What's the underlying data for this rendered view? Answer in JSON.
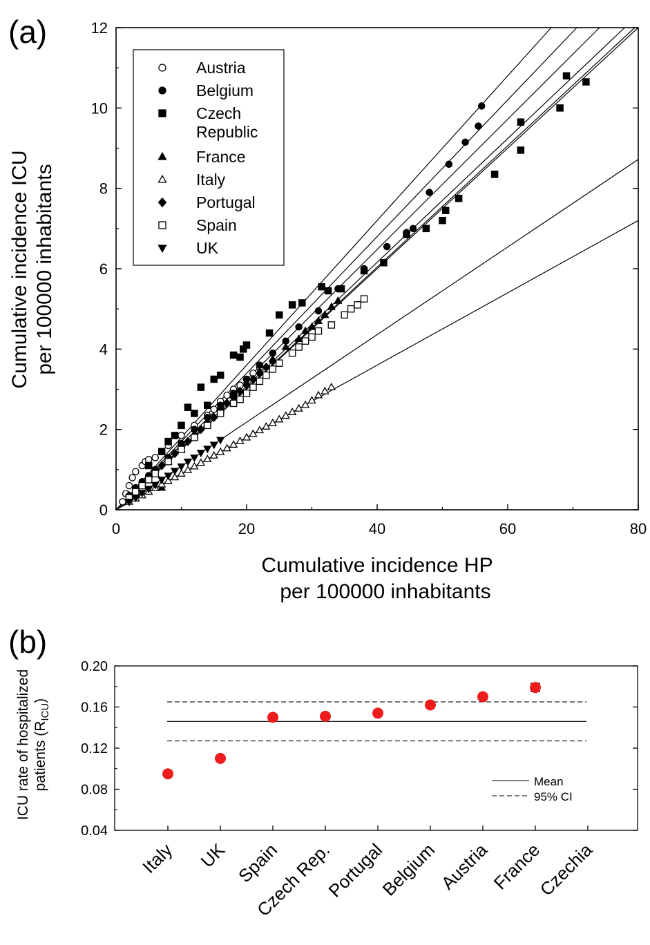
{
  "chart_data": [
    {
      "type": "scatter",
      "panel_label": "(a)",
      "xlabel_lines": [
        "Cumulative incidence HP",
        "per 100000 inhabitants"
      ],
      "ylabel_lines": [
        "Cumulative incidence ICU",
        "per 100000 inhabitants"
      ],
      "xlim": [
        0,
        80
      ],
      "ylim": [
        0,
        12
      ],
      "xticks": [
        0,
        20,
        40,
        60,
        80
      ],
      "yticks": [
        0,
        2,
        4,
        6,
        8,
        10,
        12
      ],
      "legend_position": "top-left",
      "legend": [
        {
          "label": "Austria",
          "marker": "circle-open"
        },
        {
          "label": "Belgium",
          "marker": "circle-filled"
        },
        {
          "label": "Czech",
          "label2": "Republic",
          "marker": "square-filled"
        },
        {
          "label": "France",
          "marker": "triangle-up-filled"
        },
        {
          "label": "Italy",
          "marker": "triangle-up-open"
        },
        {
          "label": "Portugal",
          "marker": "diamond-filled"
        },
        {
          "label": "Spain",
          "marker": "square-open"
        },
        {
          "label": "UK",
          "marker": "triangle-down-filled"
        }
      ],
      "fit_line_slopes": [
        0.09,
        0.109,
        0.15,
        0.151,
        0.154,
        0.162,
        0.17,
        0.18
      ],
      "series": [
        {
          "name": "Austria",
          "marker": "circle-open",
          "points": [
            [
              1,
              0.2
            ],
            [
              1.5,
              0.4
            ],
            [
              2,
              0.6
            ],
            [
              2.5,
              0.8
            ],
            [
              3,
              0.95
            ],
            [
              4,
              1.1
            ],
            [
              4.5,
              1.2
            ],
            [
              5,
              1.25
            ],
            [
              6,
              1.3
            ],
            [
              7,
              1.45
            ],
            [
              8,
              1.6
            ],
            [
              10,
              1.85
            ],
            [
              12,
              2.1
            ],
            [
              14,
              2.35
            ],
            [
              15,
              2.5
            ],
            [
              16,
              2.7
            ],
            [
              17,
              2.85
            ],
            [
              18,
              3.0
            ],
            [
              19,
              3.1
            ],
            [
              20,
              3.25
            ],
            [
              21,
              3.4
            ],
            [
              22,
              3.55
            ]
          ]
        },
        {
          "name": "Belgium",
          "marker": "circle-filled",
          "points": [
            [
              2,
              0.35
            ],
            [
              3,
              0.55
            ],
            [
              4,
              0.7
            ],
            [
              5,
              0.85
            ],
            [
              6,
              1.0
            ],
            [
              8,
              1.3
            ],
            [
              10,
              1.65
            ],
            [
              12,
              2.0
            ],
            [
              14,
              2.3
            ],
            [
              16,
              2.6
            ],
            [
              18,
              2.9
            ],
            [
              20,
              3.25
            ],
            [
              22,
              3.6
            ],
            [
              24,
              3.9
            ],
            [
              26,
              4.2
            ],
            [
              28,
              4.55
            ],
            [
              31,
              4.95
            ],
            [
              34,
              5.5
            ],
            [
              38,
              6.0
            ],
            [
              41.5,
              6.55
            ],
            [
              44.5,
              6.9
            ],
            [
              45.5,
              7.0
            ],
            [
              48,
              7.9
            ],
            [
              51,
              8.6
            ],
            [
              53.5,
              9.15
            ],
            [
              55.5,
              9.55
            ],
            [
              56,
              10.05
            ]
          ]
        },
        {
          "name": "Czech Republic",
          "marker": "square-filled",
          "points": [
            [
              5,
              1.1
            ],
            [
              7,
              1.45
            ],
            [
              8,
              1.7
            ],
            [
              9,
              1.85
            ],
            [
              10,
              2.1
            ],
            [
              11,
              2.55
            ],
            [
              12,
              2.4
            ],
            [
              13,
              3.05
            ],
            [
              14,
              2.6
            ],
            [
              15,
              3.25
            ],
            [
              16,
              3.35
            ],
            [
              18,
              3.85
            ],
            [
              19,
              3.8
            ],
            [
              19.5,
              4.0
            ],
            [
              20,
              4.1
            ],
            [
              23.5,
              4.4
            ],
            [
              25,
              4.85
            ],
            [
              27,
              5.1
            ],
            [
              28.5,
              5.15
            ],
            [
              31.5,
              5.55
            ],
            [
              32.5,
              5.45
            ],
            [
              34.5,
              5.5
            ],
            [
              38,
              5.95
            ],
            [
              41,
              6.15
            ],
            [
              44.5,
              6.85
            ],
            [
              47.5,
              7.0
            ],
            [
              50,
              7.2
            ],
            [
              50.5,
              7.45
            ],
            [
              52.5,
              7.75
            ],
            [
              58,
              8.35
            ],
            [
              62,
              8.95
            ],
            [
              62,
              9.65
            ],
            [
              68,
              10.0
            ],
            [
              69,
              10.8
            ],
            [
              72,
              10.65
            ]
          ]
        },
        {
          "name": "France",
          "marker": "triangle-up-filled",
          "points": [
            [
              3,
              0.45
            ],
            [
              4,
              0.6
            ],
            [
              5,
              0.75
            ],
            [
              6,
              0.9
            ],
            [
              7,
              0.55
            ],
            [
              8,
              1.2
            ],
            [
              10,
              1.5
            ],
            [
              12,
              1.85
            ],
            [
              14,
              2.15
            ],
            [
              16,
              2.5
            ],
            [
              18,
              2.85
            ],
            [
              20,
              3.15
            ],
            [
              22,
              3.45
            ],
            [
              24,
              3.75
            ],
            [
              26,
              4.05
            ],
            [
              28,
              4.25
            ],
            [
              29,
              4.45
            ],
            [
              30,
              4.55
            ],
            [
              31,
              4.7
            ],
            [
              32,
              4.85
            ],
            [
              33,
              5.05
            ],
            [
              34,
              5.2
            ]
          ]
        },
        {
          "name": "Italy",
          "marker": "triangle-up-open",
          "points": [
            [
              2,
              0.2
            ],
            [
              3,
              0.28
            ],
            [
              4,
              0.36
            ],
            [
              5,
              0.45
            ],
            [
              6,
              0.54
            ],
            [
              7,
              0.63
            ],
            [
              8,
              0.72
            ],
            [
              9,
              0.81
            ],
            [
              10,
              0.9
            ],
            [
              11,
              0.99
            ],
            [
              12,
              1.08
            ],
            [
              13,
              1.17
            ],
            [
              14,
              1.26
            ],
            [
              15,
              1.35
            ],
            [
              16,
              1.44
            ],
            [
              17,
              1.53
            ],
            [
              18,
              1.62
            ],
            [
              19,
              1.71
            ],
            [
              20,
              1.8
            ],
            [
              21,
              1.89
            ],
            [
              22,
              1.98
            ],
            [
              23,
              2.07
            ],
            [
              24,
              2.16
            ],
            [
              25,
              2.25
            ],
            [
              26,
              2.34
            ],
            [
              27,
              2.43
            ],
            [
              28,
              2.52
            ],
            [
              29,
              2.61
            ],
            [
              30,
              2.72
            ],
            [
              31,
              2.85
            ],
            [
              32,
              2.95
            ],
            [
              33,
              3.05
            ]
          ]
        },
        {
          "name": "Portugal",
          "marker": "diamond-filled",
          "points": [
            [
              2,
              0.35
            ],
            [
              3,
              0.5
            ],
            [
              4,
              0.65
            ],
            [
              5,
              0.8
            ],
            [
              6,
              0.95
            ],
            [
              7,
              1.1
            ],
            [
              8,
              1.25
            ],
            [
              9,
              1.4
            ],
            [
              10,
              1.55
            ],
            [
              11,
              1.7
            ],
            [
              12,
              1.85
            ],
            [
              13,
              2.0
            ],
            [
              14,
              2.15
            ],
            [
              15,
              2.3
            ],
            [
              16,
              2.5
            ],
            [
              17,
              2.65
            ],
            [
              18,
              2.8
            ],
            [
              19,
              2.95
            ],
            [
              20,
              3.1
            ],
            [
              21,
              3.25
            ],
            [
              22,
              3.4
            ],
            [
              23,
              3.55
            ],
            [
              24,
              3.7
            ]
          ]
        },
        {
          "name": "Spain",
          "marker": "square-open",
          "points": [
            [
              2,
              0.3
            ],
            [
              3,
              0.45
            ],
            [
              4,
              0.6
            ],
            [
              5,
              0.75
            ],
            [
              6,
              0.9
            ],
            [
              8,
              1.2
            ],
            [
              10,
              1.5
            ],
            [
              12,
              1.8
            ],
            [
              14,
              2.1
            ],
            [
              16,
              2.4
            ],
            [
              18,
              2.65
            ],
            [
              19,
              2.75
            ],
            [
              20,
              2.9
            ],
            [
              21,
              3.05
            ],
            [
              22,
              3.2
            ],
            [
              23,
              3.35
            ],
            [
              24,
              3.5
            ],
            [
              25,
              3.65
            ],
            [
              27,
              3.9
            ],
            [
              28,
              4.05
            ],
            [
              29,
              4.2
            ],
            [
              30,
              4.3
            ],
            [
              31,
              4.45
            ],
            [
              33,
              4.6
            ],
            [
              35,
              4.85
            ],
            [
              36,
              5.0
            ],
            [
              37,
              5.1
            ],
            [
              38,
              5.25
            ]
          ]
        },
        {
          "name": "UK",
          "marker": "triangle-down-filled",
          "points": [
            [
              2,
              0.2
            ],
            [
              3,
              0.3
            ],
            [
              4,
              0.42
            ],
            [
              5,
              0.52
            ],
            [
              6,
              0.62
            ],
            [
              7,
              0.75
            ],
            [
              8,
              0.85
            ],
            [
              9,
              0.97
            ],
            [
              10,
              1.08
            ],
            [
              11,
              1.2
            ],
            [
              12,
              1.3
            ],
            [
              13,
              1.42
            ],
            [
              14,
              1.52
            ],
            [
              15,
              1.62
            ],
            [
              16,
              1.74
            ]
          ]
        }
      ]
    },
    {
      "type": "scatter",
      "panel_label": "(b)",
      "ylabel_lines": [
        "ICU rate of hospitalized",
        "patients (R",
        "ICU",
        ")"
      ],
      "ylim": [
        0.04,
        0.2
      ],
      "yticks": [
        "0.20",
        "0.16",
        "0.12",
        "0.08",
        "0.04"
      ],
      "ytick_values": [
        0.2,
        0.16,
        0.12,
        0.08,
        0.04
      ],
      "categories": [
        "Italy",
        "UK",
        "Spain",
        "Czech Rep.",
        "Portugal",
        "Belgium",
        "Austria",
        "France",
        "Czechia"
      ],
      "values": [
        0.095,
        0.11,
        0.15,
        0.151,
        0.154,
        0.162,
        0.17,
        0.179,
        null
      ],
      "error": [
        0,
        0,
        0,
        0,
        0,
        0,
        0,
        0.004,
        0
      ],
      "point_color": "#ee1c1c",
      "mean": 0.146,
      "ci": [
        0.127,
        0.165
      ],
      "legend_position": "bottom-right",
      "legend": [
        {
          "label": "Mean",
          "style": "solid"
        },
        {
          "label": "95% CI",
          "style": "dashed"
        }
      ]
    }
  ]
}
